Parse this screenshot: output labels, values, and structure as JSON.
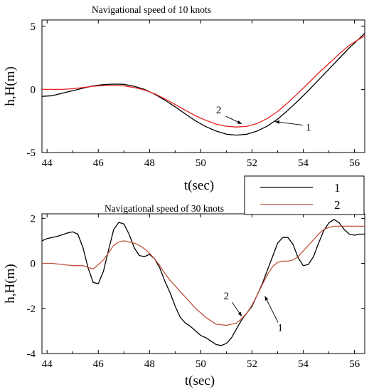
{
  "chart_data": [
    {
      "type": "line",
      "title": "Navigational speed of 10 knots",
      "xlabel": "t(sec)",
      "ylabel": "h,H(m)",
      "xlim": [
        43.8,
        56.4
      ],
      "ylim": [
        -5,
        5.5
      ],
      "xticks": [
        44,
        46,
        48,
        50,
        52,
        54,
        56
      ],
      "yticks": [
        -5,
        0,
        5
      ],
      "grid": false,
      "series": [
        {
          "name": "1",
          "color": "#000000",
          "x": [
            43.8,
            44.2,
            44.6,
            45.0,
            45.4,
            45.8,
            46.2,
            46.6,
            47.0,
            47.4,
            47.8,
            48.2,
            48.6,
            49.0,
            49.4,
            49.8,
            50.2,
            50.6,
            51.0,
            51.4,
            51.8,
            52.2,
            52.6,
            53.0,
            53.4,
            53.8,
            54.2,
            54.6,
            55.0,
            55.4,
            55.8,
            56.2,
            56.4
          ],
          "y": [
            -0.55,
            -0.5,
            -0.3,
            -0.1,
            0.1,
            0.28,
            0.38,
            0.42,
            0.4,
            0.25,
            0.0,
            -0.38,
            -0.85,
            -1.38,
            -1.95,
            -2.5,
            -2.95,
            -3.3,
            -3.55,
            -3.62,
            -3.55,
            -3.3,
            -2.9,
            -2.35,
            -1.65,
            -0.9,
            -0.1,
            0.75,
            1.6,
            2.45,
            3.3,
            4.05,
            4.45
          ]
        },
        {
          "name": "2",
          "color": "#e8231f",
          "x": [
            43.8,
            44.2,
            44.6,
            45.0,
            45.4,
            45.8,
            46.2,
            46.6,
            47.0,
            47.4,
            47.8,
            48.2,
            48.6,
            49.0,
            49.4,
            49.8,
            50.2,
            50.6,
            51.0,
            51.4,
            51.8,
            52.2,
            52.6,
            53.0,
            53.4,
            53.8,
            54.2,
            54.6,
            55.0,
            55.4,
            55.8,
            56.2,
            56.4
          ],
          "y": [
            0.0,
            0.0,
            0.0,
            0.05,
            0.15,
            0.25,
            0.3,
            0.3,
            0.28,
            0.15,
            -0.05,
            -0.35,
            -0.75,
            -1.2,
            -1.65,
            -2.1,
            -2.45,
            -2.75,
            -2.92,
            -2.98,
            -2.92,
            -2.7,
            -2.3,
            -1.75,
            -1.05,
            -0.3,
            0.5,
            1.3,
            2.05,
            2.8,
            3.5,
            4.0,
            4.25
          ]
        }
      ],
      "annotations": [
        {
          "text": "2",
          "x": 51.6,
          "y": -2.9
        },
        {
          "text": "1",
          "x": 52.9,
          "y": -2.55
        }
      ]
    },
    {
      "type": "line",
      "title": "Navigational speed of 30 knots",
      "xlabel": "t(sec)",
      "ylabel": "h,H(m)",
      "xlim": [
        43.8,
        56.4
      ],
      "ylim": [
        -4,
        2.2
      ],
      "xticks": [
        44,
        46,
        48,
        50,
        52,
        54,
        56
      ],
      "yticks": [
        -4,
        -2,
        0,
        2
      ],
      "grid": false,
      "legend": {
        "placement": "top-right",
        "entries": [
          "1",
          "2"
        ]
      },
      "series": [
        {
          "name": "1",
          "color": "#000000",
          "x": [
            43.8,
            44.0,
            44.4,
            44.8,
            45.0,
            45.2,
            45.4,
            45.6,
            45.8,
            46.0,
            46.2,
            46.4,
            46.6,
            46.8,
            47.0,
            47.2,
            47.4,
            47.6,
            47.8,
            48.0,
            48.2,
            48.4,
            48.6,
            48.8,
            49.0,
            49.2,
            49.4,
            49.6,
            49.8,
            50.0,
            50.2,
            50.4,
            50.6,
            50.8,
            51.0,
            51.2,
            51.4,
            51.6,
            51.8,
            52.0,
            52.2,
            52.4,
            52.6,
            52.8,
            53.0,
            53.2,
            53.4,
            53.6,
            53.8,
            54.0,
            54.2,
            54.4,
            54.6,
            54.8,
            55.0,
            55.2,
            55.4,
            55.6,
            55.8,
            56.0,
            56.2,
            56.4
          ],
          "y": [
            1.0,
            1.1,
            1.2,
            1.35,
            1.4,
            1.3,
            0.7,
            -0.2,
            -0.85,
            -0.9,
            -0.35,
            0.6,
            1.5,
            1.82,
            1.75,
            1.3,
            0.7,
            0.35,
            0.3,
            0.4,
            0.2,
            -0.2,
            -0.8,
            -1.3,
            -1.9,
            -2.4,
            -2.65,
            -2.8,
            -3.0,
            -3.2,
            -3.3,
            -3.45,
            -3.6,
            -3.65,
            -3.55,
            -3.3,
            -2.9,
            -2.5,
            -2.2,
            -1.9,
            -1.4,
            -0.9,
            -0.3,
            0.3,
            0.9,
            1.15,
            1.15,
            0.85,
            0.25,
            -0.1,
            -0.05,
            0.3,
            0.9,
            1.45,
            1.8,
            1.95,
            1.8,
            1.5,
            1.3,
            1.25,
            1.3,
            1.3
          ]
        },
        {
          "name": "2",
          "color": "#c0533f",
          "x": [
            43.8,
            44.2,
            44.6,
            45.0,
            45.4,
            45.8,
            46.2,
            46.6,
            46.8,
            47.0,
            47.2,
            47.4,
            47.6,
            47.8,
            48.0,
            48.2,
            48.4,
            48.6,
            48.8,
            49.0,
            49.4,
            49.8,
            50.2,
            50.6,
            51.0,
            51.4,
            51.6,
            51.8,
            52.0,
            52.2,
            52.4,
            52.6,
            52.8,
            53.0,
            53.2,
            53.4,
            53.6,
            53.8,
            54.0,
            54.2,
            54.4,
            54.6,
            54.8,
            55.0,
            55.2,
            55.4,
            55.6,
            55.8,
            56.0,
            56.2,
            56.4
          ],
          "y": [
            0.0,
            0.0,
            -0.05,
            -0.1,
            -0.1,
            -0.25,
            0.15,
            0.8,
            0.95,
            1.0,
            0.95,
            0.9,
            0.8,
            0.65,
            0.45,
            0.2,
            -0.1,
            -0.45,
            -0.75,
            -1.0,
            -1.5,
            -2.0,
            -2.4,
            -2.7,
            -2.75,
            -2.65,
            -2.45,
            -2.2,
            -1.85,
            -1.4,
            -0.95,
            -0.5,
            -0.15,
            0.05,
            0.1,
            0.1,
            0.15,
            0.3,
            0.55,
            0.8,
            1.05,
            1.3,
            1.5,
            1.6,
            1.65,
            1.65,
            1.65,
            1.65,
            1.65,
            1.65,
            1.65
          ]
        }
      ],
      "annotations": [
        {
          "text": "2",
          "x": 51.6,
          "y": -2.35
        },
        {
          "text": "1",
          "x": 52.5,
          "y": -1.45
        }
      ]
    }
  ]
}
